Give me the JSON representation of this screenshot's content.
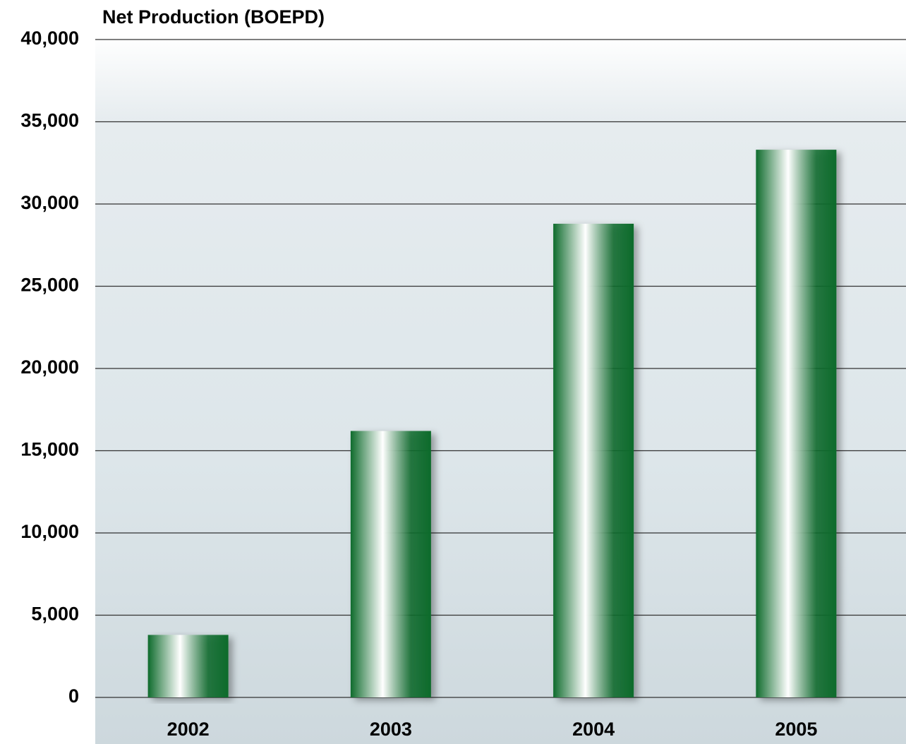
{
  "chart_data": {
    "type": "bar",
    "title": "Net Production (BOEPD)",
    "categories": [
      "2002",
      "2003",
      "2004",
      "2005"
    ],
    "values": [
      3800,
      16200,
      28800,
      33300
    ],
    "color": "#0e6b2c",
    "ylim": [
      0,
      40000
    ],
    "yticks": [
      0,
      {
        "value": 5000,
        "label": "5,000"
      },
      {
        "value": 10000,
        "label": "10,000"
      },
      {
        "value": 15000,
        "label": "15,000"
      },
      {
        "value": 20000,
        "label": "20,000"
      },
      {
        "value": 25000,
        "label": "25,000"
      },
      {
        "value": 30000,
        "label": "30,000"
      },
      {
        "value": 35000,
        "label": "35,000"
      },
      {
        "value": 40000,
        "label": "40,000"
      }
    ],
    "grid": true
  }
}
